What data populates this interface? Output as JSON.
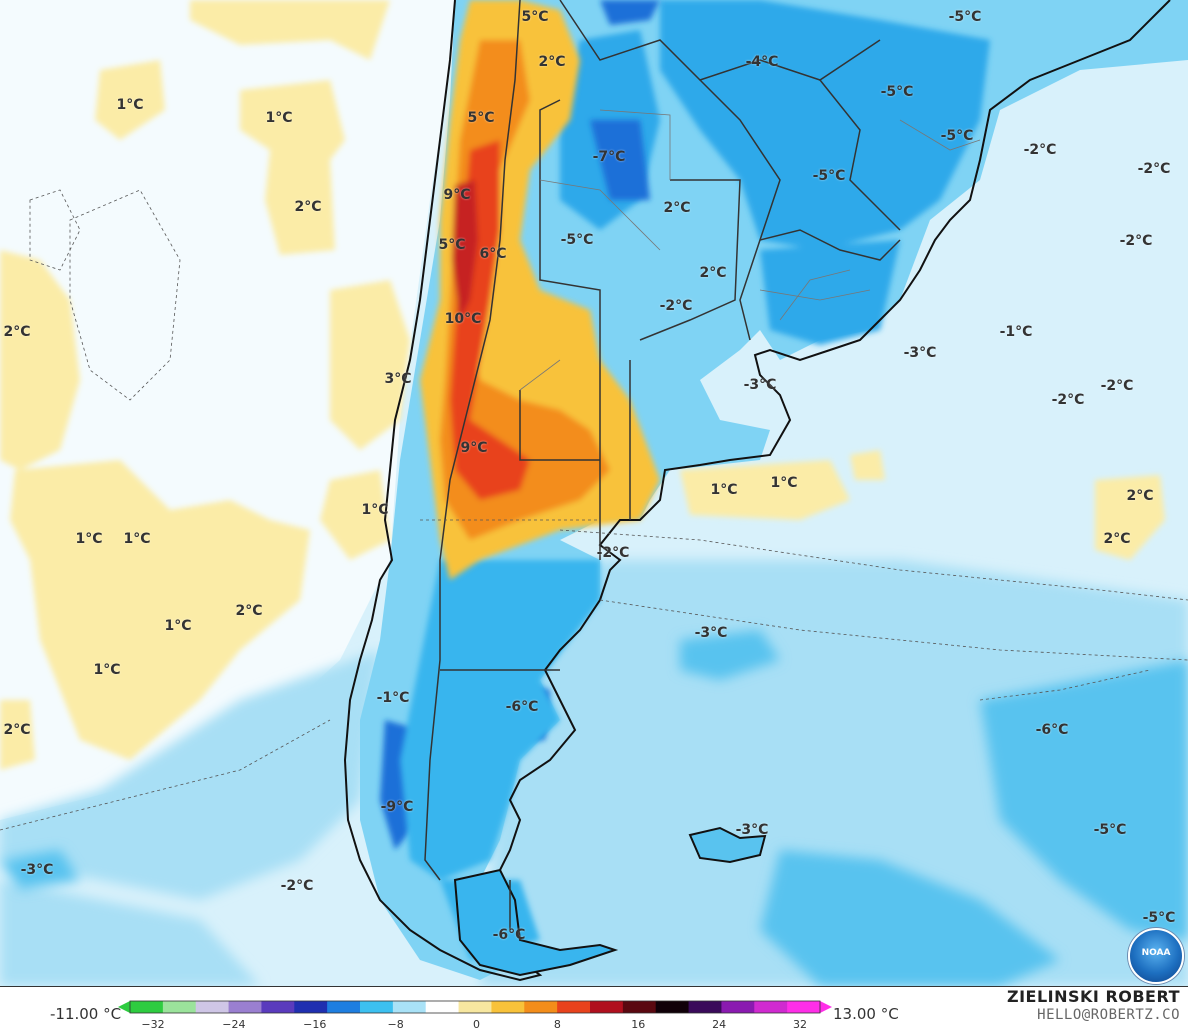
{
  "map": {
    "labels": [
      {
        "id": "l01",
        "text": "5°C"
      },
      {
        "id": "l02",
        "text": "2°C"
      },
      {
        "id": "l03",
        "text": "1°C"
      },
      {
        "id": "l04",
        "text": "1°C"
      },
      {
        "id": "l05",
        "text": "2°C"
      },
      {
        "id": "l06",
        "text": "5°C"
      },
      {
        "id": "l07",
        "text": "9°C"
      },
      {
        "id": "l08",
        "text": "5°C"
      },
      {
        "id": "l09",
        "text": "6°C"
      },
      {
        "id": "l10",
        "text": "10°C"
      },
      {
        "id": "l11",
        "text": "3°C"
      },
      {
        "id": "l12",
        "text": "9°C"
      },
      {
        "id": "l13",
        "text": "1°C"
      },
      {
        "id": "l14",
        "text": "2°C"
      },
      {
        "id": "l15",
        "text": "1°C"
      },
      {
        "id": "l16",
        "text": "1°C"
      },
      {
        "id": "l17",
        "text": "2°C"
      },
      {
        "id": "l18",
        "text": "1°C"
      },
      {
        "id": "l19",
        "text": "1°C"
      },
      {
        "id": "l20",
        "text": "2°C"
      },
      {
        "id": "l21",
        "text": "-4°C"
      },
      {
        "id": "l22",
        "text": "-5°C"
      },
      {
        "id": "l23",
        "text": "-5°C"
      },
      {
        "id": "l24",
        "text": "-5°C"
      },
      {
        "id": "l25",
        "text": "-7°C"
      },
      {
        "id": "l26",
        "text": "-5°C"
      },
      {
        "id": "l27",
        "text": "-2°C"
      },
      {
        "id": "l28",
        "text": "-2°C"
      },
      {
        "id": "l29",
        "text": "-2°C"
      },
      {
        "id": "l30",
        "text": "-5°C"
      },
      {
        "id": "l31",
        "text": "2°C"
      },
      {
        "id": "l32",
        "text": "2°C"
      },
      {
        "id": "l33",
        "text": "-2°C"
      },
      {
        "id": "l34",
        "text": "-1°C"
      },
      {
        "id": "l35",
        "text": "-3°C"
      },
      {
        "id": "l36",
        "text": "-3°C"
      },
      {
        "id": "l37",
        "text": "-2°C"
      },
      {
        "id": "l38",
        "text": "-2°C"
      },
      {
        "id": "l39",
        "text": "1°C"
      },
      {
        "id": "l40",
        "text": "1°C"
      },
      {
        "id": "l41",
        "text": "2°C"
      },
      {
        "id": "l42",
        "text": "2°C"
      },
      {
        "id": "l43",
        "text": "-2°C"
      },
      {
        "id": "l44",
        "text": "-3°C"
      },
      {
        "id": "l45",
        "text": "-6°C"
      },
      {
        "id": "l46",
        "text": "-6°C"
      },
      {
        "id": "l47",
        "text": "-1°C"
      },
      {
        "id": "l48",
        "text": "-9°C"
      },
      {
        "id": "l49",
        "text": "-3°C"
      },
      {
        "id": "l50",
        "text": "-5°C"
      },
      {
        "id": "l51",
        "text": "-3°C"
      },
      {
        "id": "l52",
        "text": "-2°C"
      },
      {
        "id": "l53",
        "text": "-6°C"
      },
      {
        "id": "l54",
        "text": "-5°C"
      }
    ]
  },
  "legend": {
    "min_label": "-11.00 °C",
    "max_label": "13.00 °C",
    "ticks": [
      "−32",
      "−24",
      "−16",
      "−8",
      "0",
      "8",
      "16",
      "24",
      "32"
    ],
    "colors": [
      "#2ecc40",
      "#9be39b",
      "#cfc6e6",
      "#9a7fd0",
      "#5a3bbd",
      "#1f2fb0",
      "#1e7ee0",
      "#3cc0f0",
      "#a9e2f7",
      "#ffffff",
      "#f7e7a0",
      "#f8c23a",
      "#f38d1a",
      "#e8421c",
      "#b00f1e",
      "#5a0810",
      "#100008",
      "#3a0a5a",
      "#8a1ab0",
      "#d02ad0",
      "#ff2ee8"
    ]
  },
  "credit": {
    "name": "ZIELINSKI ROBERT",
    "email": "HELLO@ROBERTZ.CO"
  },
  "logo": {
    "text": "NOAA"
  }
}
